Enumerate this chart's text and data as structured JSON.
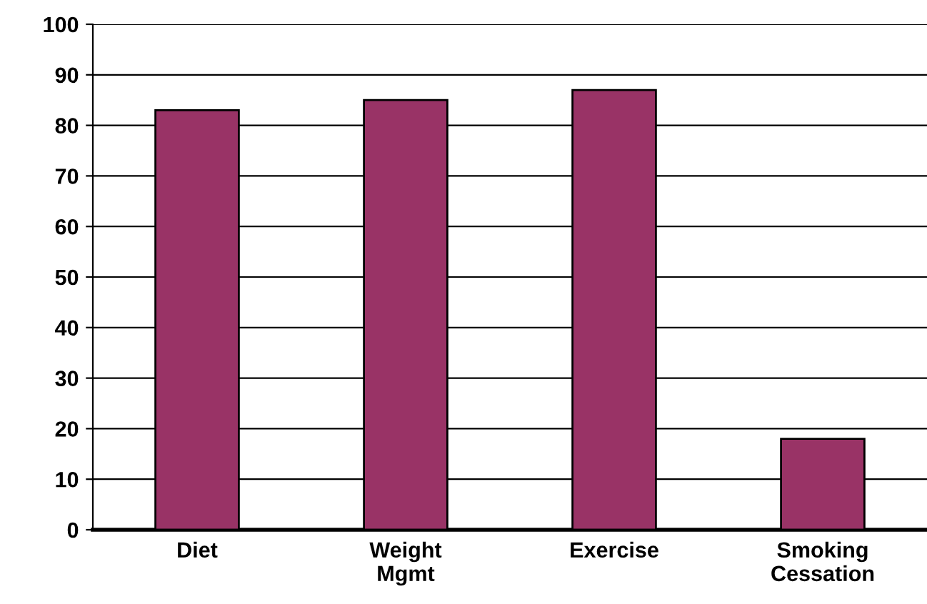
{
  "chart_data": {
    "type": "bar",
    "categories": [
      "Diet",
      "Weight\nMgmt",
      "Exercise",
      "Smoking\nCessation"
    ],
    "values": [
      83,
      85,
      87,
      18
    ],
    "color": "#993366",
    "ylim": [
      0,
      100
    ],
    "yticks": [
      0,
      10,
      20,
      30,
      40,
      50,
      60,
      70,
      80,
      90,
      100
    ],
    "grid": "y"
  }
}
